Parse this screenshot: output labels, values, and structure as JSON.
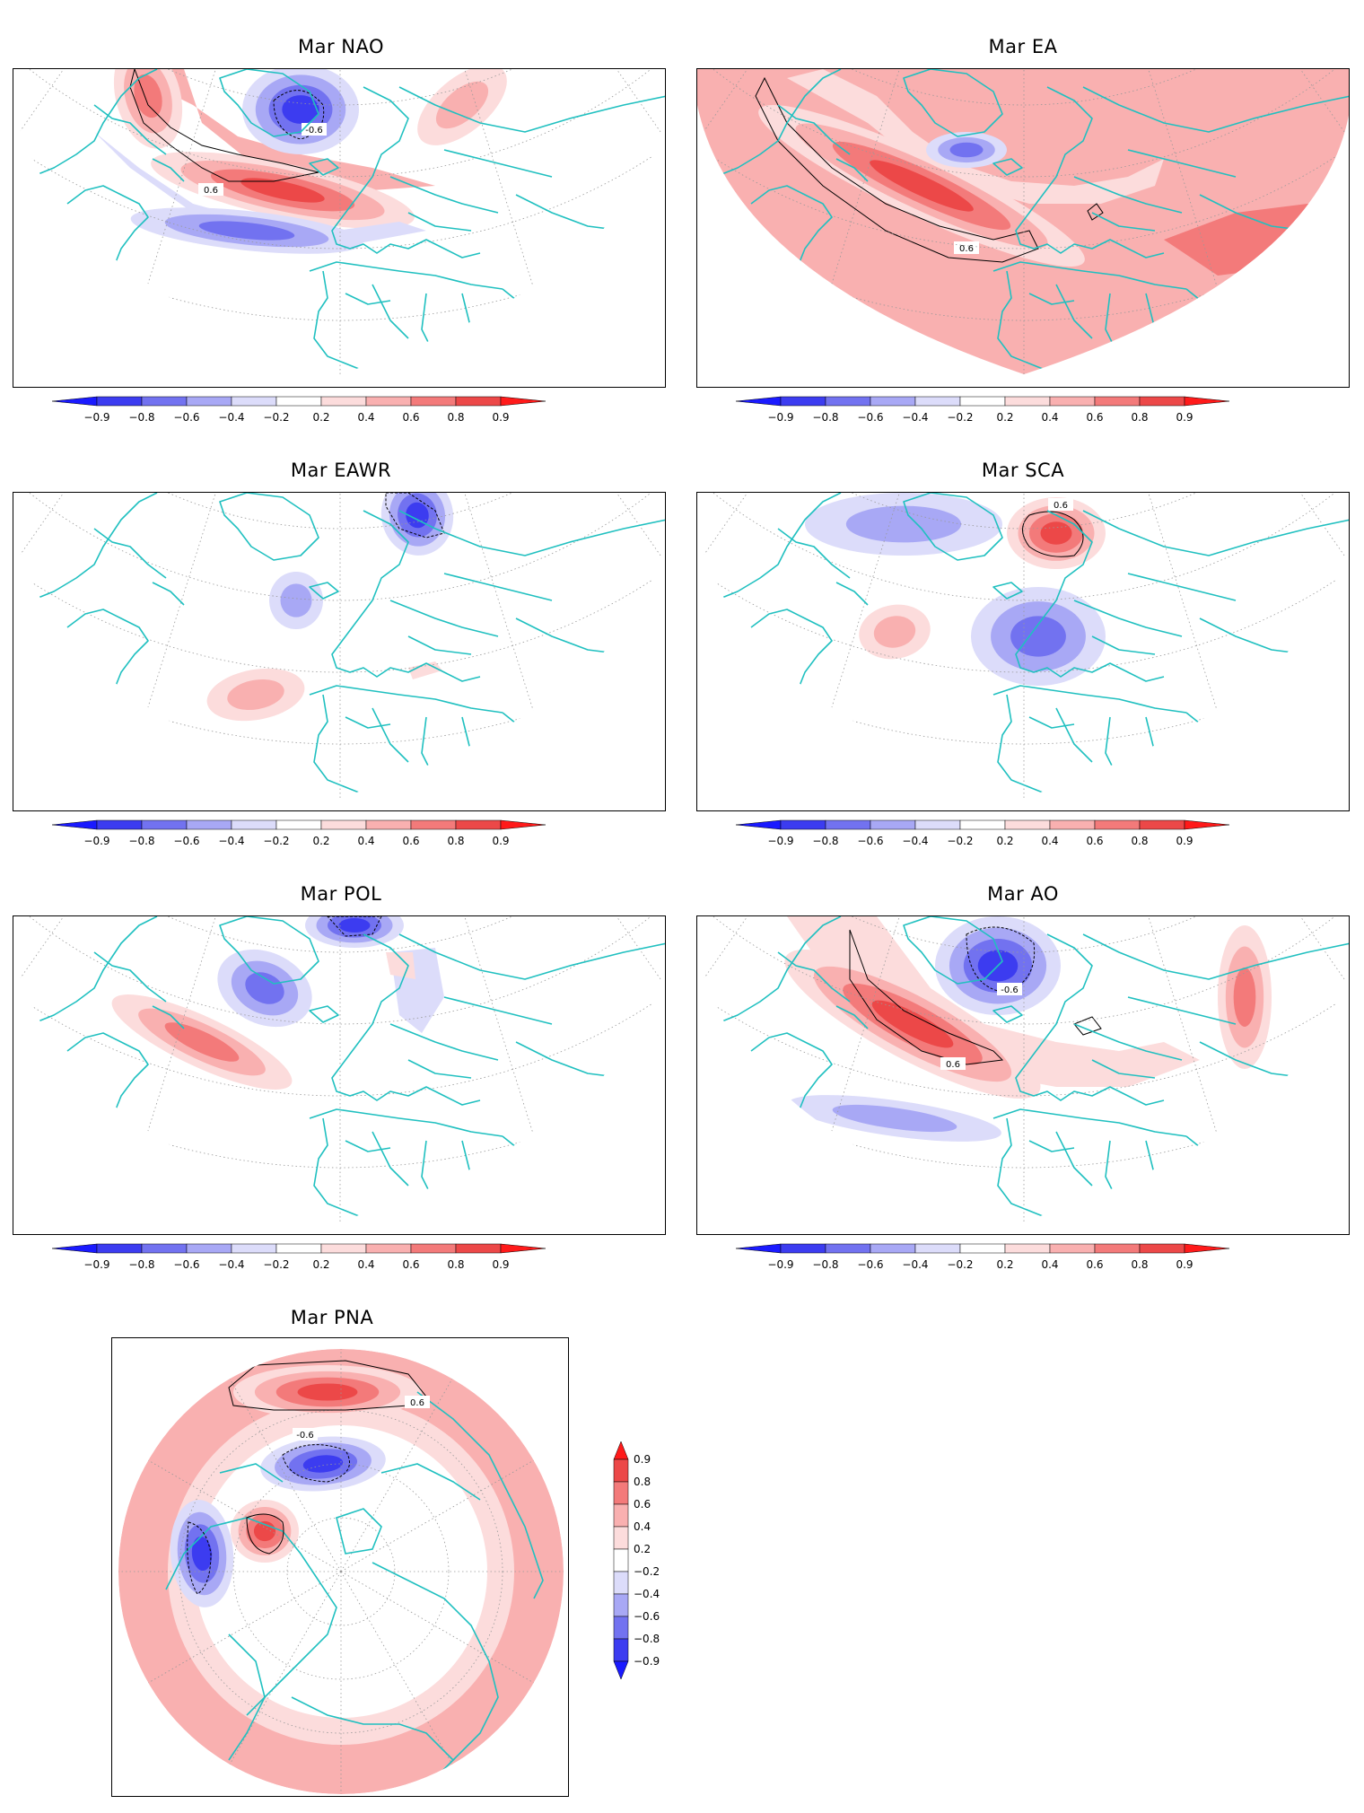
{
  "chart_data": [
    {
      "type": "heatmap",
      "title": "Mar NAO",
      "contour_labels": [
        "0.6",
        "-0.6"
      ],
      "features": [
        {
          "sign": "neg",
          "peak": 0.8,
          "region": "Greenland / Iceland"
        },
        {
          "sign": "pos",
          "peak": 0.8,
          "region": "central North Atlantic"
        },
        {
          "sign": "pos",
          "peak": 0.6,
          "region": "western Atlantic / eastern North America"
        },
        {
          "sign": "neg",
          "peak": 0.6,
          "region": "subtropical Atlantic"
        },
        {
          "sign": "pos",
          "peak": 0.4,
          "region": "Asia"
        }
      ]
    },
    {
      "type": "heatmap",
      "title": "Mar EA",
      "contour_labels": [
        "0.6"
      ],
      "features": [
        {
          "sign": "pos",
          "peak": 0.8,
          "region": "mid-latitude North Atlantic"
        },
        {
          "sign": "pos",
          "peak": 0.6,
          "region": "Europe / Asia"
        },
        {
          "sign": "neg",
          "peak": 0.6,
          "region": "south of Greenland"
        }
      ]
    },
    {
      "type": "heatmap",
      "title": "Mar EAWR",
      "contour_labels": [],
      "features": [
        {
          "sign": "neg",
          "peak": 0.8,
          "region": "Scandinavia / Barents Sea"
        },
        {
          "sign": "neg",
          "peak": 0.4,
          "region": "central North Atlantic"
        },
        {
          "sign": "pos",
          "peak": 0.4,
          "region": "subtropical Atlantic"
        }
      ]
    },
    {
      "type": "heatmap",
      "title": "Mar SCA",
      "contour_labels": [
        "0.6"
      ],
      "features": [
        {
          "sign": "pos",
          "peak": 0.8,
          "region": "Scandinavia"
        },
        {
          "sign": "neg",
          "peak": 0.6,
          "region": "Western Europe"
        },
        {
          "sign": "pos",
          "peak": 0.4,
          "region": "central North Atlantic"
        },
        {
          "sign": "neg",
          "peak": 0.4,
          "region": "Greenland"
        }
      ]
    },
    {
      "type": "heatmap",
      "title": "Mar POL",
      "contour_labels": [],
      "features": [
        {
          "sign": "neg",
          "peak": 0.8,
          "region": "Arctic / Greenland"
        },
        {
          "sign": "neg",
          "peak": 0.6,
          "region": "Hudson Bay"
        },
        {
          "sign": "pos",
          "peak": 0.6,
          "region": "western Atlantic"
        },
        {
          "sign": "neg",
          "peak": 0.4,
          "region": "Africa / Asia"
        }
      ]
    },
    {
      "type": "heatmap",
      "title": "Mar AO",
      "contour_labels": [
        "-0.6",
        "0.6"
      ],
      "features": [
        {
          "sign": "neg",
          "peak": 0.8,
          "region": "Arctic / Greenland"
        },
        {
          "sign": "pos",
          "peak": 0.8,
          "region": "North Atlantic"
        },
        {
          "sign": "pos",
          "peak": 0.6,
          "region": "Asia"
        },
        {
          "sign": "neg",
          "peak": 0.4,
          "region": "subtropical Atlantic"
        }
      ]
    },
    {
      "type": "heatmap",
      "title": "Mar PNA",
      "contour_labels": [
        "0.6",
        "-0.6"
      ],
      "features": [
        {
          "sign": "pos",
          "peak": 0.8,
          "region": "North Pacific (south of Aleutians)"
        },
        {
          "sign": "neg",
          "peak": 0.8,
          "region": "Aleutian Low region"
        },
        {
          "sign": "pos",
          "peak": 0.8,
          "region": "western Canada"
        },
        {
          "sign": "neg",
          "peak": 0.8,
          "region": "southeastern United States"
        },
        {
          "sign": "pos",
          "peak": 0.6,
          "region": "tropical / subtropical belt"
        }
      ]
    }
  ],
  "colorbar": {
    "tick_labels": [
      "−0.9",
      "−0.8",
      "−0.6",
      "−0.4",
      "−0.2",
      "0.2",
      "0.4",
      "0.6",
      "0.8",
      "0.9"
    ],
    "colors": [
      "#1a1aff",
      "#3c3cf0",
      "#7272f0",
      "#a8a8f5",
      "#dcdcfa",
      "#ffffff",
      "#fcdcdc",
      "#f9b0b0",
      "#f37a7a",
      "#ec4848",
      "#ff1a1a"
    ],
    "land_outline_color": "#20c0c0"
  }
}
